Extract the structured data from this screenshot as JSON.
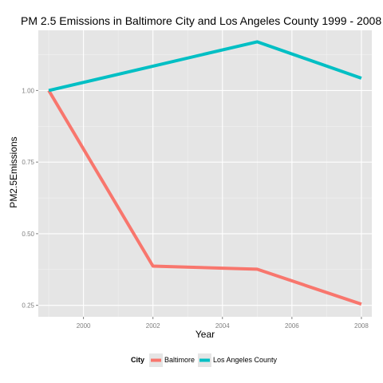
{
  "chart_data": {
    "type": "line",
    "title": "PM 2.5 Emissions in Baltimore City and Los Angeles County 1999 - 2008",
    "xlabel": "Year",
    "ylabel": "PM2.5Emissions",
    "x": [
      1999,
      2002,
      2005,
      2008
    ],
    "xlim": [
      1998.7,
      2008.3
    ],
    "ylim": [
      0.21,
      1.21
    ],
    "xticks": [
      "2000",
      "2002",
      "2004",
      "2006",
      "2008"
    ],
    "yticks": [
      "0.25",
      "0.50",
      "0.75",
      "1.00"
    ],
    "grid": true,
    "legend": {
      "title": "City",
      "position": "bottom"
    },
    "series": [
      {
        "name": "Baltimore",
        "color": "#F8766D",
        "values": [
          1.0,
          0.387,
          0.376,
          0.254
        ]
      },
      {
        "name": "Los Angeles County",
        "color": "#00BFC4",
        "values": [
          1.0,
          1.085,
          1.17,
          1.043
        ]
      }
    ]
  }
}
